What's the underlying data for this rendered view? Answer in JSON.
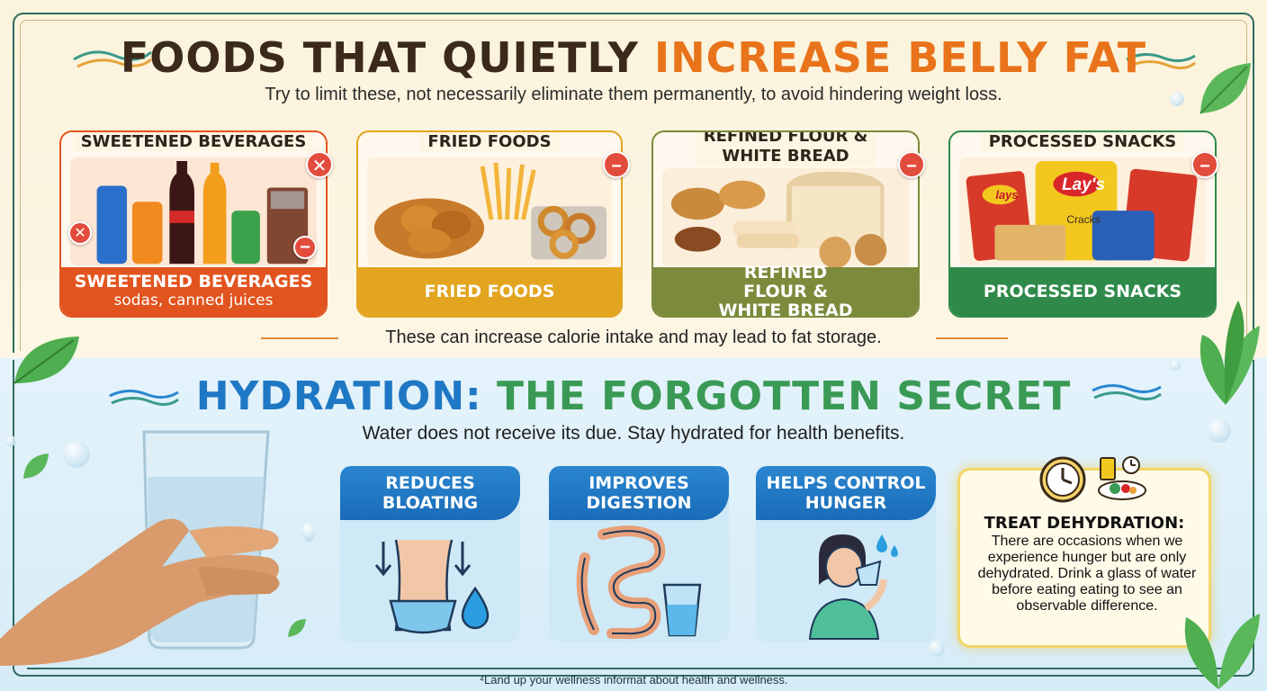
{
  "top": {
    "title_part1": "FOODS THAT QUIETLY ",
    "title_part2": "INCREASE BELLY FAT",
    "subtitle": "Try to limit these, not necessarily eliminate them permanently, to avoid hindering weight loss.",
    "cards": [
      {
        "heading": "SWEETENED BEVERAGES",
        "band": "SWEETENED BEVERAGES",
        "band_sub": "sodas, canned juices"
      },
      {
        "heading": "FRIED FOODS",
        "band": "FRIED FOODS"
      },
      {
        "heading": "REFINED FLOUR & WHITE BREAD",
        "band": "REFINED FLOUR & WHITE BREAD"
      },
      {
        "heading": "PROCESSED SNACKS",
        "band": "PROCESSED SNACKS",
        "chip_brand": "lays",
        "chip_brand2": "Lay's",
        "chip_flavor": "Cracks"
      }
    ],
    "note": "These can increase calorie intake and may lead to fat storage."
  },
  "bottom": {
    "title_part1": "HYDRATION: ",
    "title_part2": "THE FORGOTTEN SECRET",
    "subtitle": "Water does not receive its due. Stay hydrated for health benefits.",
    "cards": [
      {
        "label": "REDUCES BLOATING"
      },
      {
        "label": "IMPROVES DIGESTION"
      },
      {
        "label": "HELPS CONTROL HUNGER"
      }
    ],
    "tip_title": "TREAT DEHYDRATION:",
    "tip_body": "There are occasions when we experience hunger but are only dehydrated. Drink a glass of water before eating eating to see an observable difference."
  },
  "footer": "⁴Land up your wellness informat about health and wellness.",
  "colors": {
    "orange_accent": "#e8731a",
    "blue_accent": "#1f78c4",
    "green_accent": "#3a9a55",
    "beverages_band": "#e2541f",
    "fried_band": "#e3a51f",
    "flour_band": "#7c8a3c",
    "snacks_band": "#2f8a4a"
  },
  "icons": [
    "x-icon",
    "minus-icon",
    "clock-icon",
    "meal-icon",
    "arrow-down-icon",
    "water-drop-icon",
    "intestine-icon",
    "glass-icon",
    "drinking-person-icon",
    "mint-leaf-icon"
  ]
}
